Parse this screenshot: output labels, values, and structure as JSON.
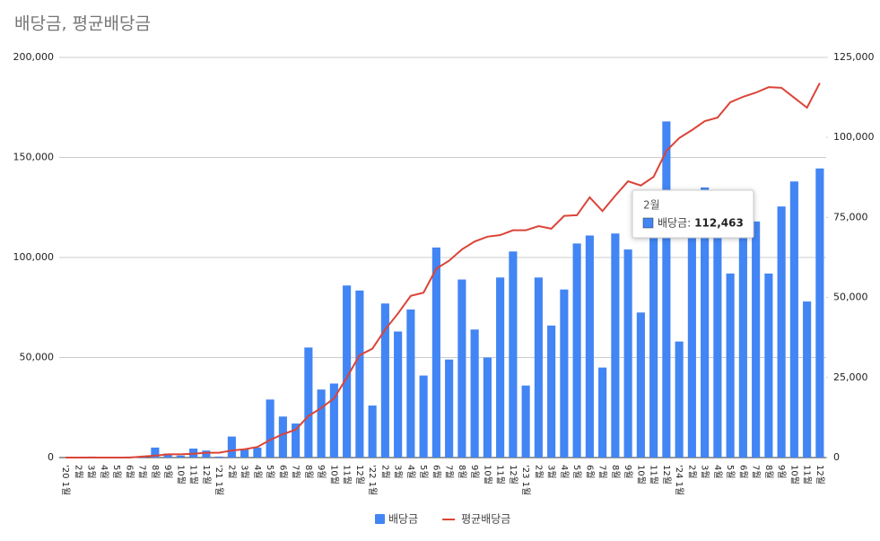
{
  "chart_data": {
    "type": "bar_line",
    "title": "배당금, 평균배당금",
    "categories": [
      "'20 1월",
      "2월",
      "3월",
      "4월",
      "5월",
      "6월",
      "7월",
      "8월",
      "9월",
      "10월",
      "11월",
      "12월",
      "'21 1월",
      "2월",
      "3월",
      "4월",
      "5월",
      "6월",
      "7월",
      "8월",
      "9월",
      "10월",
      "11월",
      "12월",
      "'22 1월",
      "2월",
      "3월",
      "4월",
      "5월",
      "6월",
      "7월",
      "8월",
      "9월",
      "10월",
      "11월",
      "12월",
      "'23 1월",
      "2월",
      "3월",
      "4월",
      "5월",
      "6월",
      "7월",
      "8월",
      "9월",
      "10월",
      "11월",
      "12월",
      "'24 1월",
      "2월",
      "3월",
      "4월",
      "5월",
      "6월",
      "7월",
      "8월",
      "9월",
      "10월",
      "11월",
      "12월"
    ],
    "series": [
      {
        "name": "배당금",
        "color": "#4285f4",
        "type": "bar",
        "values": [
          0,
          0,
          500,
          0,
          0,
          500,
          500,
          5000,
          2000,
          1000,
          4500,
          3500,
          500,
          10500,
          4000,
          5000,
          29000,
          20500,
          17000,
          55000,
          34000,
          37000,
          86000,
          83500,
          26000,
          77000,
          63000,
          74000,
          41000,
          105000,
          49000,
          89000,
          64000,
          50000,
          90000,
          103000,
          36000,
          90000,
          66000,
          84000,
          107000,
          111000,
          45000,
          112000,
          104000,
          72500,
          120000,
          168000,
          58000,
          112463,
          135000,
          120000,
          92000,
          120000,
          118000,
          92000,
          125500,
          138000,
          78000,
          144500
        ]
      },
      {
        "name": "평균배당금",
        "color": "#db4437",
        "type": "line",
        "axis": "y2",
        "values": [
          0,
          0,
          0,
          0,
          0,
          0,
          300,
          600,
          1000,
          1000,
          1200,
          1500,
          1500,
          2200,
          2600,
          3300,
          5500,
          7300,
          8700,
          13000,
          15500,
          18500,
          25000,
          32000,
          34000,
          40000,
          45000,
          50500,
          51500,
          59000,
          61500,
          65000,
          67500,
          69000,
          69500,
          71000,
          71000,
          72300,
          71500,
          75500,
          75700,
          81300,
          77000,
          81800,
          86300,
          85000,
          87700,
          95800,
          99800,
          102300,
          105100,
          106200,
          111000,
          112700,
          114000,
          115700,
          115500,
          112400,
          109300,
          117000
        ]
      }
    ],
    "ylim": [
      0,
      200000
    ],
    "yticks": [
      0,
      {
        "value": 50000,
        "label": "50,000"
      },
      {
        "value": 100000,
        "label": "100,000"
      },
      {
        "value": 150000,
        "label": "150,000"
      },
      {
        "value": 200000,
        "label": "200,000"
      }
    ],
    "y2lim": [
      0,
      125000
    ],
    "y2ticks": [
      0,
      {
        "value": 25000,
        "label": "25,000"
      },
      {
        "value": 50000,
        "label": "50,000"
      },
      {
        "value": 75000,
        "label": "75,000"
      },
      {
        "value": 100000,
        "label": "100,000"
      },
      {
        "value": 125000,
        "label": "125,000"
      }
    ],
    "grid": true,
    "legend": "bottom",
    "tooltip": {
      "title": "2월",
      "label": "배당금:",
      "value": "112,463"
    }
  }
}
